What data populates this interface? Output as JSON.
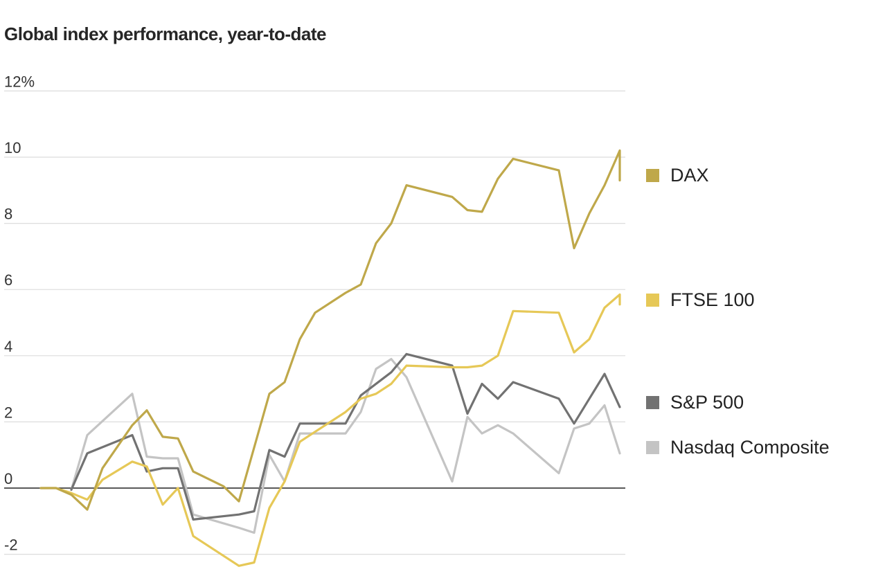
{
  "chart_data": {
    "type": "line",
    "title": "Global index performance, year-to-date",
    "xlabel": "",
    "ylabel": "",
    "ylim": [
      -2,
      12
    ],
    "y_ticks": [
      {
        "value": 12,
        "label": "12%"
      },
      {
        "value": 10,
        "label": "10"
      },
      {
        "value": 8,
        "label": "8"
      },
      {
        "value": 6,
        "label": "6"
      },
      {
        "value": 4,
        "label": "4"
      },
      {
        "value": 2,
        "label": "2"
      },
      {
        "value": 0,
        "label": "0"
      },
      {
        "value": -2,
        "label": "-2"
      }
    ],
    "grid": true,
    "legend": "right, at line ends",
    "series": [
      {
        "name": "DAX",
        "color": "#bfa84a",
        "values": [
          0.0,
          0.0,
          -0.2,
          -0.65,
          0.6,
          1.9,
          2.35,
          1.55,
          1.5,
          0.5,
          0.05,
          -0.4,
          2.85,
          3.2,
          4.5,
          5.3,
          5.9,
          6.15,
          7.4,
          8.0,
          9.15,
          8.8,
          8.4,
          8.35,
          9.35,
          9.95,
          9.6,
          7.25,
          8.3,
          9.15,
          10.2,
          9.3
        ]
      },
      {
        "name": "FTSE 100",
        "color": "#e6c857",
        "values": [
          0.0,
          0.0,
          -0.15,
          -0.35,
          0.25,
          0.8,
          0.65,
          -0.5,
          0.0,
          -1.45,
          -2.35,
          -2.25,
          -0.6,
          0.2,
          1.4,
          1.7,
          2.3,
          2.7,
          2.85,
          3.15,
          3.7,
          3.65,
          3.65,
          3.7,
          4.0,
          5.35,
          5.3,
          4.1,
          4.5,
          5.45,
          5.85,
          5.55
        ]
      },
      {
        "name": "S&P 500",
        "color": "#727272",
        "values": [
          -0.05,
          1.05,
          1.6,
          0.5,
          0.6,
          0.6,
          -0.95,
          -0.8,
          -0.7,
          1.15,
          0.95,
          1.95,
          1.95,
          1.95,
          2.8,
          3.5,
          4.05,
          3.7,
          2.25,
          3.15,
          2.7,
          3.2,
          2.7,
          1.95,
          2.7,
          3.45,
          2.45
        ]
      },
      {
        "name": "Nasdaq Composite",
        "color": "#c4c4c4",
        "values": [
          -0.05,
          1.6,
          2.85,
          0.95,
          0.9,
          0.9,
          -0.8,
          -1.2,
          -1.35,
          1.0,
          0.2,
          1.65,
          1.65,
          1.65,
          2.3,
          3.6,
          3.9,
          3.35,
          0.2,
          2.15,
          1.65,
          1.9,
          1.65,
          0.45,
          1.8,
          1.95,
          2.5,
          1.05
        ]
      }
    ]
  }
}
